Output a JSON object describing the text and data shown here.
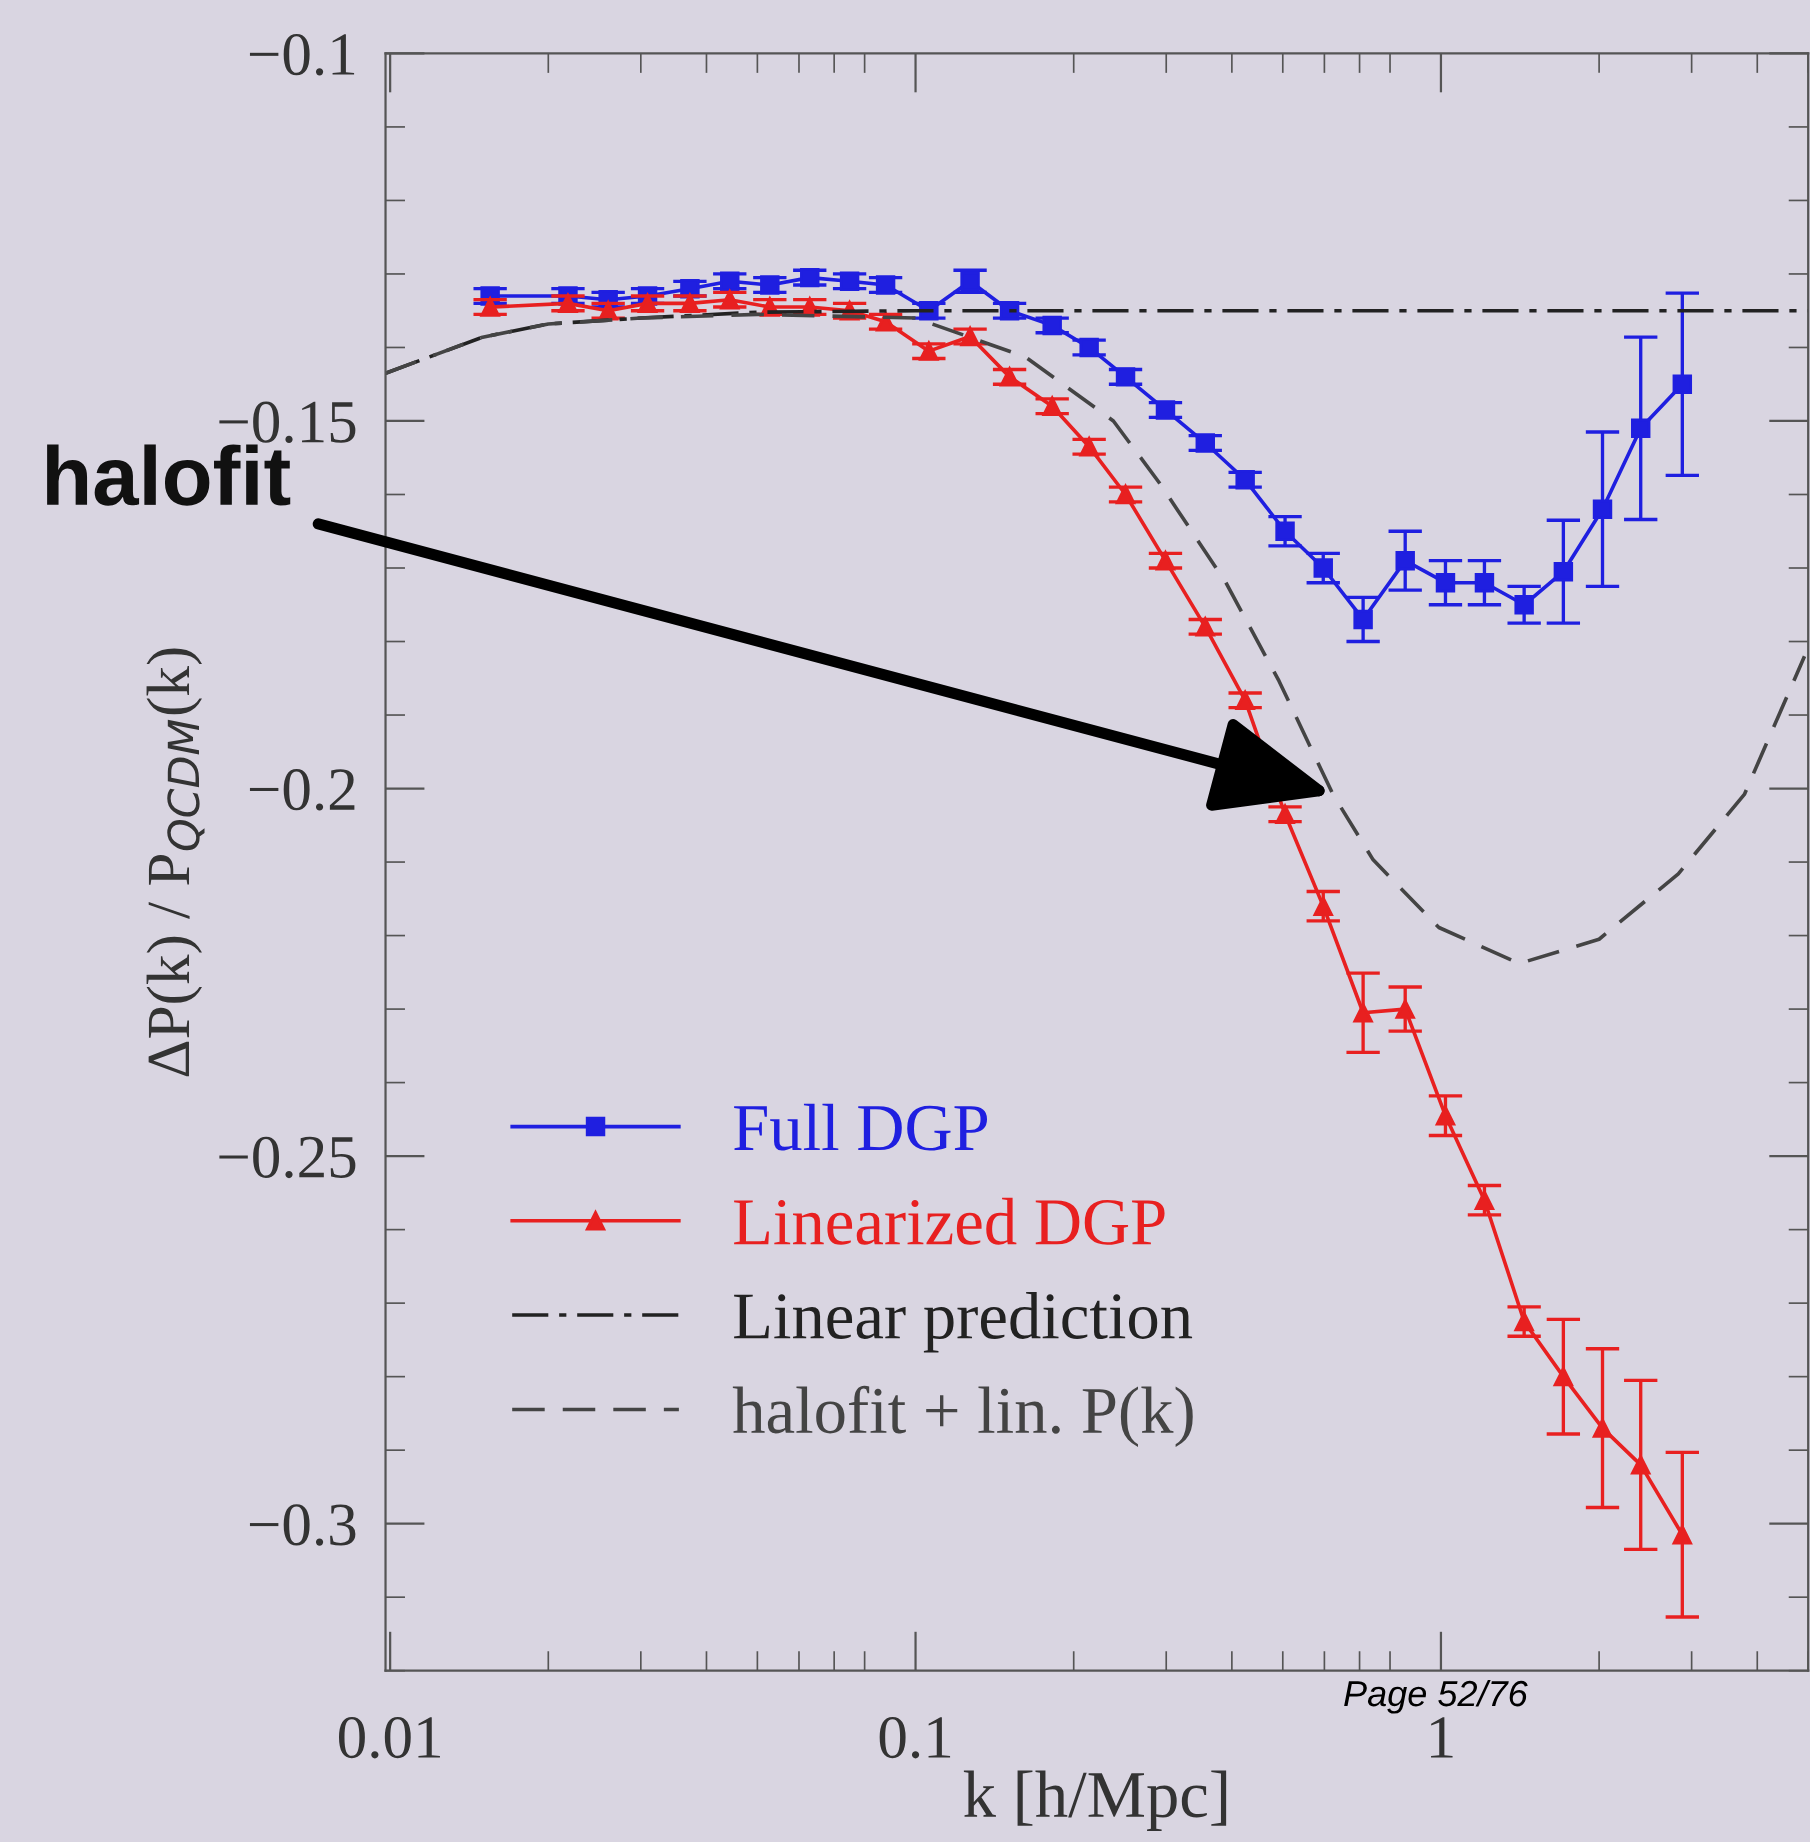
{
  "chart_data": {
    "type": "line",
    "xlabel": "k [h/Mpc]",
    "ylabel": "ΔP(k) / P$_{QCDM}$(k)",
    "log": "x",
    "xlim": [
      0.0098,
      5
    ],
    "ylim": [
      -0.32,
      -0.1
    ],
    "xticks": [
      0.01,
      0.1,
      1
    ],
    "yticks": [
      {
        "value": -0.1,
        "label": "−0.1"
      },
      {
        "value": -0.15,
        "label": "−0.15"
      },
      {
        "value": -0.2,
        "label": "−0.2"
      },
      {
        "value": -0.25,
        "label": "−0.25"
      },
      {
        "value": -0.3,
        "label": "−0.3"
      }
    ],
    "grid": false,
    "legend": "bottom left",
    "x": [
      0.0155,
      0.0218,
      0.026,
      0.0309,
      0.0372,
      0.0443,
      0.0528,
      0.0629,
      0.0749,
      0.0877,
      0.106,
      0.127,
      0.151,
      0.182,
      0.214,
      0.251,
      0.299,
      0.356,
      0.424,
      0.505,
      0.597,
      0.711,
      0.855,
      1.02,
      1.21,
      1.44,
      1.71,
      2.03,
      2.4,
      2.88
    ],
    "series": [
      {
        "name": "Full DGP",
        "color": "#1f1fe0",
        "marker": "square",
        "line_style": "solid",
        "values": [
          -0.133,
          -0.133,
          -0.1335,
          -0.133,
          -0.132,
          -0.131,
          -0.1315,
          -0.1305,
          -0.131,
          -0.1315,
          -0.135,
          -0.131,
          -0.135,
          -0.137,
          -0.14,
          -0.144,
          -0.1485,
          -0.153,
          -0.158,
          -0.165,
          -0.17,
          -0.177,
          -0.169,
          -0.172,
          -0.172,
          -0.175,
          -0.1705,
          -0.162,
          -0.151,
          -0.145
        ],
        "errors": [
          0.001,
          0.001,
          0.001,
          0.001,
          0.001,
          0.001,
          0.001,
          0.001,
          0.001,
          0.001,
          0.001,
          0.0015,
          0.001,
          0.001,
          0.001,
          0.001,
          0.001,
          0.001,
          0.001,
          0.002,
          0.002,
          0.003,
          0.004,
          0.003,
          0.003,
          0.0025,
          0.007,
          0.0105,
          0.0124,
          0.0124
        ]
      },
      {
        "name": "Linearized DGP",
        "color": "#e82020",
        "marker": "triangle",
        "line_style": "solid",
        "values": [
          -0.1345,
          -0.134,
          -0.135,
          -0.134,
          -0.134,
          -0.1335,
          -0.1345,
          -0.1345,
          -0.135,
          -0.1365,
          -0.1405,
          -0.1385,
          -0.144,
          -0.148,
          -0.1535,
          -0.16,
          -0.169,
          -0.178,
          -0.188,
          -0.2035,
          -0.216,
          -0.2305,
          -0.23,
          -0.2445,
          -0.256,
          -0.2725,
          -0.28,
          -0.287,
          -0.292,
          -0.3015
        ],
        "errors": [
          0.001,
          0.001,
          0.001,
          0.001,
          0.001,
          0.001,
          0.001,
          0.001,
          0.001,
          0.001,
          0.001,
          0.001,
          0.001,
          0.001,
          0.001,
          0.001,
          0.001,
          0.001,
          0.001,
          0.001,
          0.002,
          0.0054,
          0.003,
          0.0027,
          0.002,
          0.002,
          0.0078,
          0.0108,
          0.0115,
          0.0112
        ]
      },
      {
        "name": "Linear prediction",
        "color": "#222222",
        "marker": "none",
        "line_style": "dashdot",
        "x": [
          0.0098,
          0.015,
          0.02,
          0.03,
          0.05,
          0.1,
          5
        ],
        "values": [
          -0.1435,
          -0.1386,
          -0.1368,
          -0.136,
          -0.1352,
          -0.135,
          -0.135
        ]
      },
      {
        "name": "halofit + lin. P(k)",
        "color": "#444444",
        "marker": "none",
        "line_style": "dashed",
        "x": [
          0.0098,
          0.015,
          0.02,
          0.03,
          0.05,
          0.1,
          0.162,
          0.238,
          0.291,
          0.389,
          0.492,
          0.623,
          0.743,
          0.991,
          1.41,
          2.0,
          2.83,
          3.78,
          4.92
        ],
        "values": [
          -0.1435,
          -0.1386,
          -0.1368,
          -0.136,
          -0.1355,
          -0.136,
          -0.1413,
          -0.15,
          -0.1584,
          -0.1719,
          -0.1854,
          -0.2008,
          -0.2097,
          -0.2189,
          -0.2238,
          -0.2205,
          -0.2116,
          -0.2008,
          -0.182
        ]
      }
    ],
    "annotations": [
      {
        "text": "halofit",
        "x": 0.623,
        "y": -0.2008
      },
      "Page 52/76"
    ]
  }
}
